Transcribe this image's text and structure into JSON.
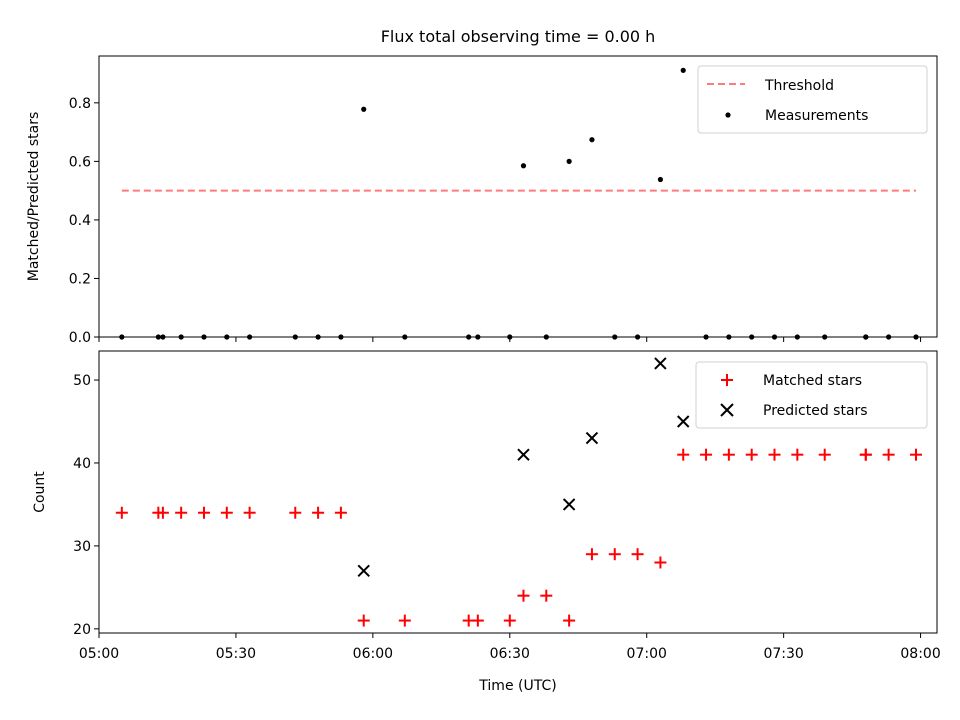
{
  "figure": {
    "title": "Flux total observing time = 0.00 h"
  },
  "chart_data": [
    {
      "type": "scatter",
      "title": "",
      "xlabel": "",
      "ylabel": "Matched/Predicted stars",
      "xlim_min": [
        5.0,
        8.06
      ],
      "ylim": [
        0.0,
        0.96
      ],
      "yticks": [
        0.0,
        0.2,
        0.4,
        0.6,
        0.8
      ],
      "ytick_labels": [
        "0.0",
        "0.2",
        "0.4",
        "0.6",
        "0.8"
      ],
      "xticks_min": [
        5.0,
        5.5,
        6.0,
        6.5,
        7.0,
        7.5,
        8.0
      ],
      "show_xtick_labels": false,
      "grid": false,
      "legend": {
        "position": "top-right",
        "entries": [
          "Threshold",
          "Measurements"
        ]
      },
      "threshold": {
        "name": "Threshold",
        "value": 0.5,
        "x_from": "05:05",
        "x_to": "07:59",
        "color": "#ff7b7b",
        "style": "dashed"
      },
      "series": [
        {
          "name": "Measurements",
          "color": "#000000",
          "marker": "dot",
          "x": [
            "05:05",
            "05:13",
            "05:14",
            "05:18",
            "05:23",
            "05:28",
            "05:33",
            "05:43",
            "05:48",
            "05:53",
            "05:58",
            "06:07",
            "06:21",
            "06:23",
            "06:30",
            "06:33",
            "06:38",
            "06:43",
            "06:48",
            "06:53",
            "06:58",
            "07:03",
            "07:08",
            "07:13",
            "07:18",
            "07:23",
            "07:28",
            "07:33",
            "07:39",
            "07:48",
            "07:48",
            "07:53",
            "07:59"
          ],
          "y": [
            0.0,
            0.0,
            0.0,
            0.0,
            0.0,
            0.0,
            0.0,
            0.0,
            0.0,
            0.0,
            0.778,
            0.0,
            0.0,
            0.0,
            0.0,
            0.585,
            0.0,
            0.6,
            0.674,
            0.0,
            0.0,
            0.538,
            0.911,
            0.0,
            0.0,
            0.0,
            0.0,
            0.0,
            0.0,
            0.0,
            0.0,
            0.0,
            0.0
          ]
        }
      ]
    },
    {
      "type": "scatter",
      "title": "",
      "xlabel": "Time (UTC)",
      "ylabel": "Count",
      "xlim_min": [
        5.0,
        8.06
      ],
      "ylim": [
        19.5,
        53.5
      ],
      "yticks": [
        20,
        30,
        40,
        50
      ],
      "ytick_labels": [
        "20",
        "30",
        "40",
        "50"
      ],
      "xticks_min": [
        5.0,
        5.5,
        6.0,
        6.5,
        7.0,
        7.5,
        8.0
      ],
      "xtick_labels": [
        "05:00",
        "05:30",
        "06:00",
        "06:30",
        "07:00",
        "07:30",
        "08:00"
      ],
      "grid": false,
      "legend": {
        "position": "top-right",
        "entries": [
          "Matched stars",
          "Predicted stars"
        ]
      },
      "series": [
        {
          "name": "Matched stars",
          "color": "#ff0000",
          "marker": "plus",
          "x": [
            "05:05",
            "05:13",
            "05:14",
            "05:18",
            "05:23",
            "05:28",
            "05:33",
            "05:43",
            "05:48",
            "05:53",
            "05:58",
            "06:07",
            "06:21",
            "06:23",
            "06:30",
            "06:33",
            "06:38",
            "06:43",
            "06:48",
            "06:53",
            "06:58",
            "07:03",
            "07:08",
            "07:13",
            "07:18",
            "07:23",
            "07:28",
            "07:33",
            "07:39",
            "07:48",
            "07:48",
            "07:53",
            "07:59"
          ],
          "y": [
            34,
            34,
            34,
            34,
            34,
            34,
            34,
            34,
            34,
            34,
            21,
            21,
            21,
            21,
            21,
            24,
            24,
            21,
            29,
            29,
            29,
            28,
            41,
            41,
            41,
            41,
            41,
            41,
            41,
            41,
            41,
            41,
            41
          ]
        },
        {
          "name": "Predicted stars",
          "color": "#000000",
          "marker": "x",
          "x": [
            "05:58",
            "06:33",
            "06:43",
            "06:48",
            "07:03",
            "07:08"
          ],
          "y": [
            27,
            41,
            35,
            43,
            52,
            45
          ]
        }
      ]
    }
  ]
}
